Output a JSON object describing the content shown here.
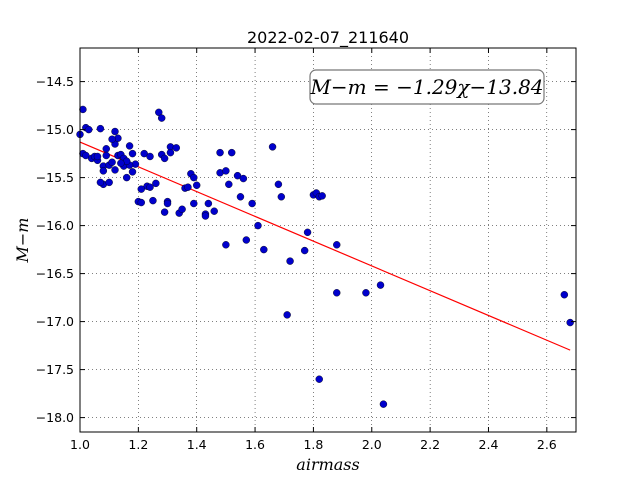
{
  "chart_data": {
    "type": "scatter",
    "title": "2022-02-07_211640",
    "xlabel": "airmass",
    "ylabel": "M−m",
    "xlim": [
      1.0,
      2.7
    ],
    "ylim": [
      -18.15,
      -14.15
    ],
    "y_inverted": true,
    "grid": true,
    "x_ticks": [
      1.0,
      1.2,
      1.4,
      1.6,
      1.8,
      2.0,
      2.2,
      2.4,
      2.6
    ],
    "x_tick_labels": [
      "1.0",
      "1.2",
      "1.4",
      "1.6",
      "1.8",
      "2.0",
      "2.2",
      "2.4",
      "2.6"
    ],
    "y_ticks": [
      -14.5,
      -15.0,
      -15.5,
      -16.0,
      -16.5,
      -17.0,
      -17.5,
      -18.0
    ],
    "y_tick_labels": [
      "−14.5",
      "−15.0",
      "−15.5",
      "−16.0",
      "−16.5",
      "−17.0",
      "−17.5",
      "−18.0"
    ],
    "annotation": "M−m = −1.29χ−13.84",
    "fit_line": {
      "slope": -1.29,
      "intercept": -13.84,
      "x_range": [
        1.0,
        2.68
      ],
      "color": "#ff0000"
    },
    "point_color": "#0000cc",
    "x": [
      1.0,
      1.02,
      1.03,
      1.01,
      1.02,
      1.04,
      1.05,
      1.07,
      1.06,
      1.08,
      1.07,
      1.08,
      1.09,
      1.1,
      1.1,
      1.11,
      1.09,
      1.12,
      1.12,
      1.13,
      1.12,
      1.13,
      1.14,
      1.15,
      1.15,
      1.16,
      1.17,
      1.18,
      1.18,
      1.19,
      1.2,
      1.21,
      1.22,
      1.23,
      1.24,
      1.25,
      1.26,
      1.27,
      1.28,
      1.28,
      1.29,
      1.3,
      1.31,
      1.31,
      1.3,
      1.33,
      1.34,
      1.35,
      1.36,
      1.38,
      1.39,
      1.39,
      1.4,
      1.43,
      1.43,
      1.44,
      1.46,
      1.48,
      1.48,
      1.5,
      1.51,
      1.52,
      1.54,
      1.55,
      1.57,
      1.59,
      1.61,
      1.63,
      1.66,
      1.68,
      1.69,
      1.71,
      1.72,
      1.77,
      1.78,
      1.8,
      1.81,
      1.82,
      1.82,
      1.88,
      1.88,
      1.98,
      2.03,
      2.04,
      2.66,
      2.68,
      1.01,
      1.06,
      1.11,
      1.17,
      1.21,
      1.24,
      1.29,
      1.37,
      1.5,
      1.56,
      1.83,
      1.16,
      1.08,
      1.14
    ],
    "y": [
      -15.05,
      -14.98,
      -15.0,
      -15.25,
      -15.27,
      -15.3,
      -15.28,
      -14.99,
      -15.32,
      -15.57,
      -15.55,
      -15.38,
      -15.2,
      -15.37,
      -15.55,
      -15.34,
      -15.27,
      -15.02,
      -15.15,
      -15.09,
      -15.42,
      -15.27,
      -15.26,
      -15.3,
      -15.38,
      -15.5,
      -15.17,
      -15.44,
      -15.25,
      -15.36,
      -15.75,
      -15.76,
      -15.25,
      -15.59,
      -15.28,
      -15.74,
      -15.56,
      -14.82,
      -14.88,
      -15.26,
      -15.86,
      -15.75,
      -15.18,
      -15.24,
      -15.77,
      -15.19,
      -15.87,
      -15.83,
      -15.61,
      -15.46,
      -15.5,
      -15.77,
      -15.58,
      -15.88,
      -15.9,
      -15.77,
      -15.85,
      -15.24,
      -15.45,
      -15.43,
      -15.57,
      -15.24,
      -15.48,
      -15.7,
      -16.15,
      -15.77,
      -16.0,
      -16.25,
      -15.18,
      -15.57,
      -15.7,
      -16.93,
      -16.37,
      -16.26,
      -16.07,
      -15.68,
      -15.66,
      -17.6,
      -15.7,
      -16.7,
      -16.2,
      -16.7,
      -16.62,
      -17.86,
      -16.72,
      -17.01,
      -14.79,
      -15.28,
      -15.1,
      -15.37,
      -15.62,
      -15.6,
      -15.3,
      -15.6,
      -16.2,
      -15.51,
      -15.69,
      -15.33,
      -15.43,
      -15.35
    ]
  }
}
